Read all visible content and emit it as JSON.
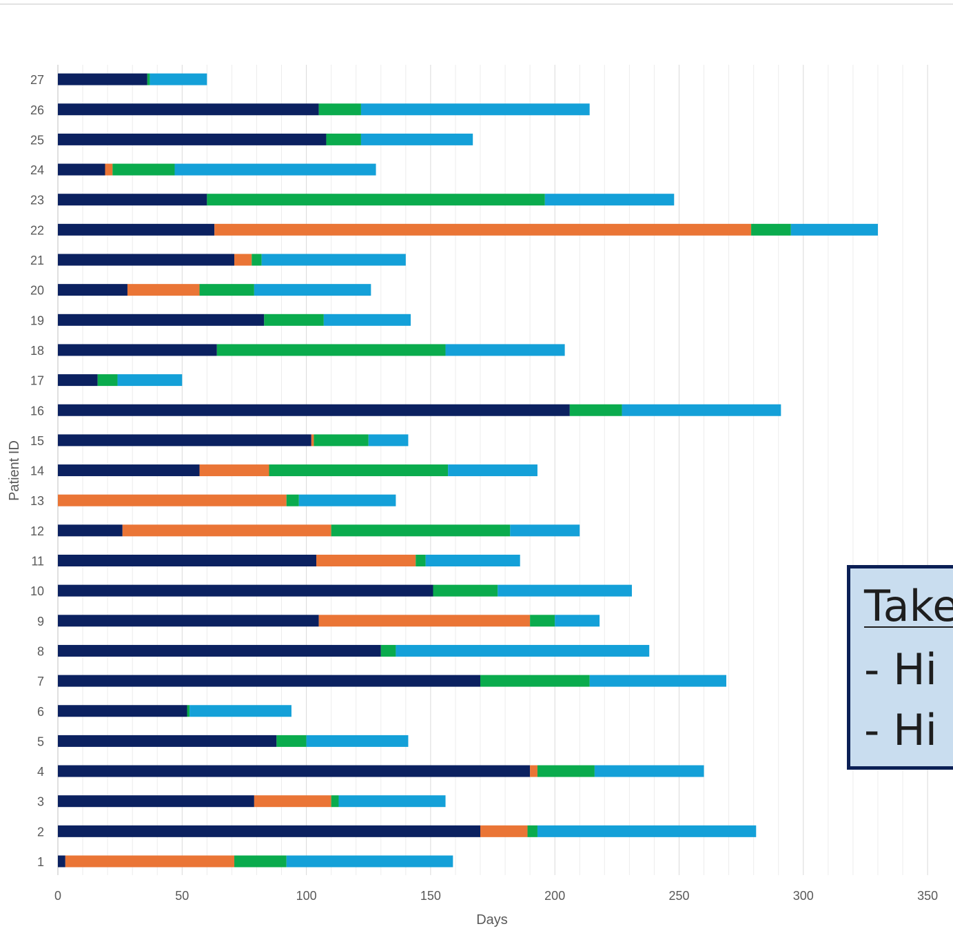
{
  "chart_data": {
    "type": "bar",
    "orientation": "horizontal",
    "stacked": true,
    "xlabel": "Days",
    "ylabel": "Patient ID",
    "xlim": [
      0,
      350
    ],
    "x_ticks": [
      0,
      50,
      100,
      150,
      200,
      250,
      300,
      350
    ],
    "grid": "vertical",
    "colors": [
      "#0b2160",
      "#ea7536",
      "#0aab4d",
      "#14a0d8"
    ],
    "categories": [
      "1",
      "2",
      "3",
      "4",
      "5",
      "6",
      "7",
      "8",
      "9",
      "10",
      "11",
      "12",
      "13",
      "14",
      "15",
      "16",
      "17",
      "18",
      "19",
      "20",
      "21",
      "22",
      "23",
      "24",
      "25",
      "26",
      "27"
    ],
    "series": [
      {
        "values": [
          3,
          170,
          79,
          190,
          88,
          52,
          170,
          130,
          105,
          151,
          104,
          26,
          0,
          57,
          102,
          206,
          16,
          64,
          83,
          28,
          71,
          63,
          60,
          19,
          108,
          105,
          36
        ]
      },
      {
        "values": [
          68,
          19,
          31,
          3,
          0,
          0,
          0,
          0,
          85,
          0,
          40,
          84,
          92,
          28,
          1,
          0,
          0,
          0,
          0,
          29,
          7,
          216,
          0,
          3,
          0,
          0,
          0
        ]
      },
      {
        "values": [
          21,
          4,
          3,
          23,
          12,
          1,
          44,
          6,
          10,
          26,
          4,
          72,
          5,
          72,
          22,
          21,
          8,
          92,
          24,
          22,
          4,
          16,
          136,
          25,
          14,
          17,
          1
        ]
      },
      {
        "values": [
          67,
          88,
          43,
          44,
          41,
          41,
          55,
          102,
          18,
          54,
          38,
          28,
          39,
          36,
          16,
          64,
          26,
          48,
          35,
          47,
          58,
          35,
          52,
          81,
          45,
          92,
          23
        ]
      }
    ]
  },
  "callout": {
    "title": "Take",
    "line1": "-  Hi",
    "line2": "-  Hi"
  }
}
